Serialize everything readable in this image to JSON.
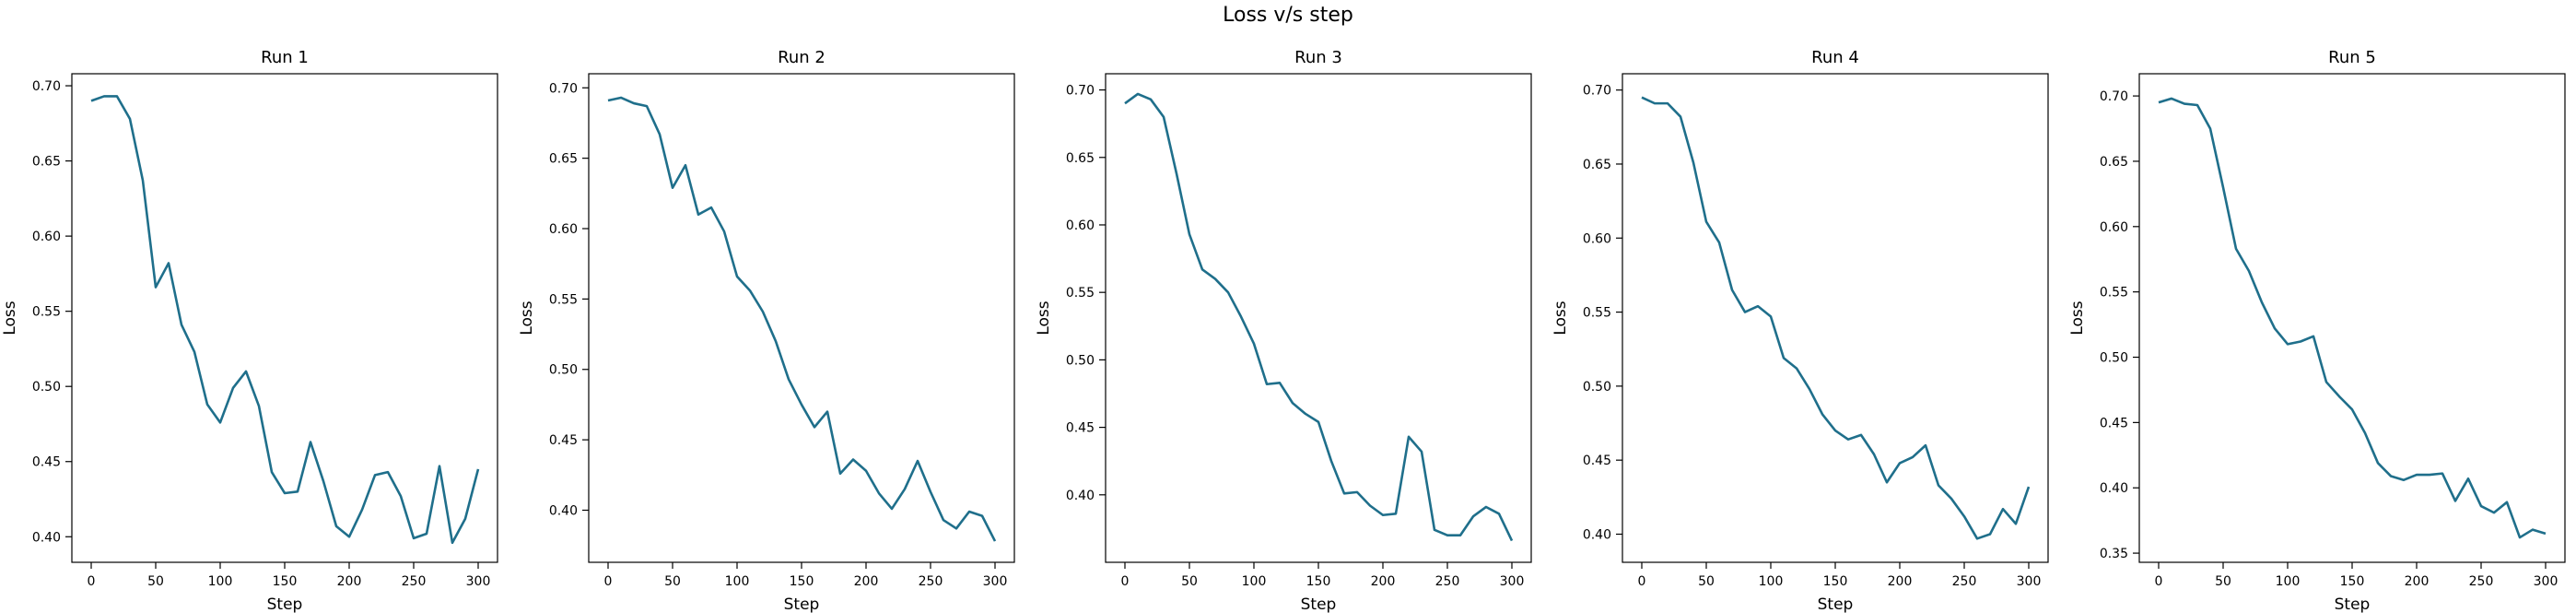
{
  "figure": {
    "title": "Loss v/s step"
  },
  "chart_data": [
    {
      "type": "line",
      "title": "Run 1",
      "xlabel": "Step",
      "ylabel": "Loss",
      "xlim": [
        -15,
        315
      ],
      "ylim": [
        0.383,
        0.708
      ],
      "xticks": [
        0,
        50,
        100,
        150,
        200,
        250,
        300
      ],
      "yticks": [
        0.4,
        0.45,
        0.5,
        0.55,
        0.6,
        0.65,
        0.7
      ],
      "grid": false,
      "series": [
        {
          "color": "#1f6f8b",
          "x": [
            0,
            10,
            20,
            30,
            40,
            50,
            60,
            70,
            80,
            90,
            100,
            110,
            120,
            130,
            140,
            150,
            160,
            170,
            180,
            190,
            200,
            210,
            220,
            230,
            240,
            250,
            260,
            270,
            280,
            290,
            300
          ],
          "y": [
            0.69,
            0.693,
            0.693,
            0.678,
            0.637,
            0.566,
            0.582,
            0.541,
            0.523,
            0.488,
            0.476,
            0.499,
            0.51,
            0.487,
            0.443,
            0.429,
            0.43,
            0.463,
            0.437,
            0.407,
            0.4,
            0.418,
            0.441,
            0.443,
            0.427,
            0.399,
            0.402,
            0.447,
            0.396,
            0.412,
            0.445
          ]
        }
      ]
    },
    {
      "type": "line",
      "title": "Run 2",
      "xlabel": "Step",
      "ylabel": "Loss",
      "xlim": [
        -15,
        315
      ],
      "ylim": [
        0.363,
        0.71
      ],
      "xticks": [
        0,
        50,
        100,
        150,
        200,
        250,
        300
      ],
      "yticks": [
        0.4,
        0.45,
        0.5,
        0.55,
        0.6,
        0.65,
        0.7
      ],
      "grid": false,
      "series": [
        {
          "color": "#1f6f8b",
          "x": [
            0,
            10,
            20,
            30,
            40,
            50,
            60,
            70,
            80,
            90,
            100,
            110,
            120,
            130,
            140,
            150,
            160,
            170,
            180,
            190,
            200,
            210,
            220,
            230,
            240,
            250,
            260,
            270,
            280,
            290,
            300
          ],
          "y": [
            0.691,
            0.693,
            0.689,
            0.687,
            0.667,
            0.629,
            0.645,
            0.61,
            0.615,
            0.598,
            0.566,
            0.556,
            0.541,
            0.52,
            0.493,
            0.475,
            0.459,
            0.47,
            0.426,
            0.436,
            0.428,
            0.412,
            0.401,
            0.415,
            0.435,
            0.413,
            0.393,
            0.387,
            0.399,
            0.396,
            0.378
          ]
        }
      ]
    },
    {
      "type": "line",
      "title": "Run 3",
      "xlabel": "Step",
      "ylabel": "Loss",
      "xlim": [
        -15,
        315
      ],
      "ylim": [
        0.35,
        0.712
      ],
      "xticks": [
        0,
        50,
        100,
        150,
        200,
        250,
        300
      ],
      "yticks": [
        0.4,
        0.45,
        0.5,
        0.55,
        0.6,
        0.65,
        0.7
      ],
      "grid": false,
      "series": [
        {
          "color": "#1f6f8b",
          "x": [
            0,
            10,
            20,
            30,
            40,
            50,
            60,
            70,
            80,
            90,
            100,
            110,
            120,
            130,
            140,
            150,
            160,
            170,
            180,
            190,
            200,
            210,
            220,
            230,
            240,
            250,
            260,
            270,
            280,
            290,
            300
          ],
          "y": [
            0.69,
            0.697,
            0.693,
            0.68,
            0.638,
            0.593,
            0.567,
            0.56,
            0.55,
            0.532,
            0.512,
            0.482,
            0.483,
            0.468,
            0.46,
            0.454,
            0.425,
            0.401,
            0.402,
            0.392,
            0.385,
            0.386,
            0.443,
            0.432,
            0.374,
            0.37,
            0.37,
            0.384,
            0.391,
            0.386,
            0.366
          ]
        }
      ]
    },
    {
      "type": "line",
      "title": "Run 4",
      "xlabel": "Step",
      "ylabel": "Loss",
      "xlim": [
        -15,
        315
      ],
      "ylim": [
        0.381,
        0.711
      ],
      "xticks": [
        0,
        50,
        100,
        150,
        200,
        250,
        300
      ],
      "yticks": [
        0.4,
        0.45,
        0.5,
        0.55,
        0.6,
        0.65,
        0.7
      ],
      "grid": false,
      "series": [
        {
          "color": "#1f6f8b",
          "x": [
            0,
            10,
            20,
            30,
            40,
            50,
            60,
            70,
            80,
            90,
            100,
            110,
            120,
            130,
            140,
            150,
            160,
            170,
            180,
            190,
            200,
            210,
            220,
            230,
            240,
            250,
            260,
            270,
            280,
            290,
            300
          ],
          "y": [
            0.695,
            0.691,
            0.691,
            0.682,
            0.651,
            0.611,
            0.597,
            0.565,
            0.55,
            0.554,
            0.547,
            0.519,
            0.512,
            0.498,
            0.481,
            0.47,
            0.464,
            0.467,
            0.454,
            0.435,
            0.448,
            0.452,
            0.46,
            0.433,
            0.424,
            0.412,
            0.397,
            0.4,
            0.417,
            0.407,
            0.432
          ]
        }
      ]
    },
    {
      "type": "line",
      "title": "Run 5",
      "xlabel": "Step",
      "ylabel": "Loss",
      "xlim": [
        -15,
        315
      ],
      "ylim": [
        0.343,
        0.717
      ],
      "xticks": [
        0,
        50,
        100,
        150,
        200,
        250,
        300
      ],
      "yticks": [
        0.35,
        0.4,
        0.45,
        0.5,
        0.55,
        0.6,
        0.65,
        0.7
      ],
      "grid": false,
      "series": [
        {
          "color": "#1f6f8b",
          "x": [
            0,
            10,
            20,
            30,
            40,
            50,
            60,
            70,
            80,
            90,
            100,
            110,
            120,
            130,
            140,
            150,
            160,
            170,
            180,
            190,
            200,
            210,
            220,
            230,
            240,
            250,
            260,
            270,
            280,
            290,
            300
          ],
          "y": [
            0.695,
            0.698,
            0.694,
            0.693,
            0.675,
            0.63,
            0.583,
            0.566,
            0.542,
            0.522,
            0.51,
            0.512,
            0.516,
            0.481,
            0.47,
            0.46,
            0.442,
            0.419,
            0.409,
            0.406,
            0.41,
            0.41,
            0.411,
            0.39,
            0.407,
            0.386,
            0.381,
            0.389,
            0.362,
            0.368,
            0.365
          ]
        }
      ]
    }
  ]
}
